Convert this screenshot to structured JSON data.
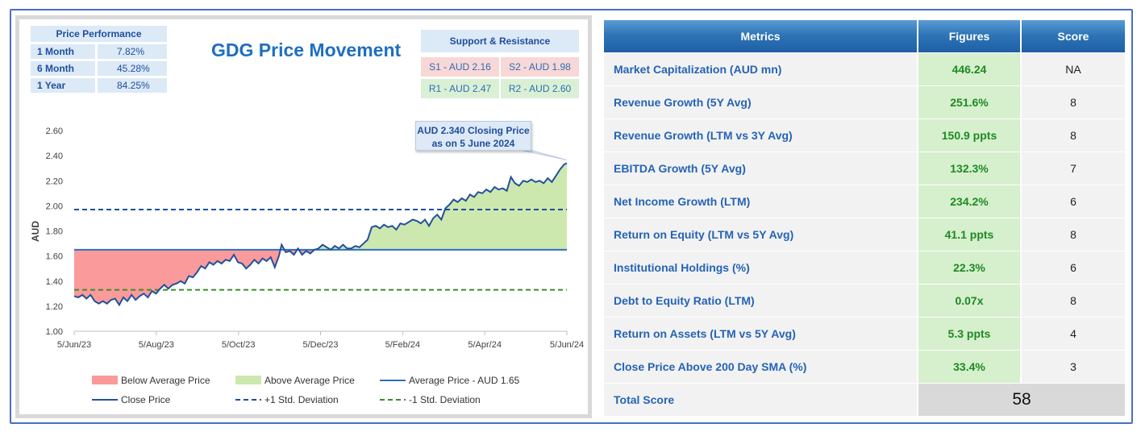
{
  "price_performance": {
    "header": "Price Performance",
    "rows": [
      {
        "label": "1 Month",
        "value": "7.82%"
      },
      {
        "label": "6 Month",
        "value": "45.28%"
      },
      {
        "label": "1 Year",
        "value": "84.25%"
      }
    ]
  },
  "chart_title": "GDG Price Movement",
  "support_resistance": {
    "header": "Support & Resistance",
    "s1": "S1 - AUD 2.16",
    "s2": "S2 - AUD 1.98",
    "r1": "R1 - AUD 2.47",
    "r2": "R2 - AUD 2.60"
  },
  "callout": {
    "line1": "AUD 2.340 Closing Price",
    "line2": "as on 5 June 2024"
  },
  "chart_data": {
    "type": "line",
    "ylabel": "AUD",
    "ylim": [
      1.0,
      2.6
    ],
    "yticks": [
      "1.00",
      "1.20",
      "1.40",
      "1.60",
      "1.80",
      "2.00",
      "2.20",
      "2.40",
      "2.60"
    ],
    "xticks": [
      "5/Jun/23",
      "5/Aug/23",
      "5/Oct/23",
      "5/Dec/23",
      "5/Feb/24",
      "5/Apr/24",
      "5/Jun/24"
    ],
    "average_price": 1.65,
    "plus_1_std": 1.97,
    "minus_1_std": 1.33,
    "close_series": [
      [
        0,
        1.28
      ],
      [
        3,
        1.27
      ],
      [
        6,
        1.29
      ],
      [
        9,
        1.26
      ],
      [
        12,
        1.29
      ],
      [
        15,
        1.24
      ],
      [
        18,
        1.22
      ],
      [
        21,
        1.24
      ],
      [
        24,
        1.22
      ],
      [
        27,
        1.25
      ],
      [
        30,
        1.26
      ],
      [
        33,
        1.21
      ],
      [
        36,
        1.27
      ],
      [
        39,
        1.24
      ],
      [
        42,
        1.29
      ],
      [
        45,
        1.25
      ],
      [
        48,
        1.28
      ],
      [
        51,
        1.3
      ],
      [
        54,
        1.27
      ],
      [
        57,
        1.32
      ],
      [
        60,
        1.3
      ],
      [
        63,
        1.34
      ],
      [
        66,
        1.37
      ],
      [
        69,
        1.34
      ],
      [
        72,
        1.37
      ],
      [
        75,
        1.38
      ],
      [
        78,
        1.4
      ],
      [
        81,
        1.38
      ],
      [
        84,
        1.44
      ],
      [
        87,
        1.43
      ],
      [
        90,
        1.47
      ],
      [
        93,
        1.52
      ],
      [
        96,
        1.5
      ],
      [
        99,
        1.55
      ],
      [
        102,
        1.53
      ],
      [
        105,
        1.56
      ],
      [
        108,
        1.54
      ],
      [
        111,
        1.57
      ],
      [
        114,
        1.56
      ],
      [
        117,
        1.61
      ],
      [
        120,
        1.55
      ],
      [
        123,
        1.54
      ],
      [
        126,
        1.5
      ],
      [
        129,
        1.53
      ],
      [
        132,
        1.57
      ],
      [
        135,
        1.54
      ],
      [
        138,
        1.58
      ],
      [
        141,
        1.56
      ],
      [
        144,
        1.59
      ],
      [
        147,
        1.51
      ],
      [
        150,
        1.6
      ],
      [
        152,
        1.69
      ],
      [
        155,
        1.63
      ],
      [
        158,
        1.64
      ],
      [
        161,
        1.61
      ],
      [
        164,
        1.66
      ],
      [
        167,
        1.61
      ],
      [
        170,
        1.64
      ],
      [
        173,
        1.62
      ],
      [
        176,
        1.65
      ],
      [
        179,
        1.66
      ],
      [
        182,
        1.69
      ],
      [
        185,
        1.67
      ],
      [
        188,
        1.65
      ],
      [
        191,
        1.68
      ],
      [
        194,
        1.66
      ],
      [
        197,
        1.69
      ],
      [
        200,
        1.66
      ],
      [
        203,
        1.66
      ],
      [
        206,
        1.68
      ],
      [
        209,
        1.67
      ],
      [
        212,
        1.7
      ],
      [
        215,
        1.73
      ],
      [
        218,
        1.83
      ],
      [
        221,
        1.84
      ],
      [
        224,
        1.82
      ],
      [
        227,
        1.85
      ],
      [
        230,
        1.83
      ],
      [
        233,
        1.84
      ],
      [
        236,
        1.81
      ],
      [
        239,
        1.86
      ],
      [
        242,
        1.85
      ],
      [
        245,
        1.87
      ],
      [
        248,
        1.89
      ],
      [
        251,
        1.88
      ],
      [
        254,
        1.86
      ],
      [
        257,
        1.89
      ],
      [
        260,
        1.84
      ],
      [
        263,
        1.9
      ],
      [
        266,
        1.93
      ],
      [
        269,
        1.89
      ],
      [
        272,
        1.98
      ],
      [
        275,
        2.01
      ],
      [
        278,
        2.05
      ],
      [
        281,
        2.03
      ],
      [
        284,
        2.06
      ],
      [
        287,
        2.04
      ],
      [
        290,
        2.09
      ],
      [
        293,
        2.07
      ],
      [
        296,
        2.11
      ],
      [
        299,
        2.1
      ],
      [
        302,
        2.13
      ],
      [
        305,
        2.11
      ],
      [
        308,
        2.15
      ],
      [
        311,
        2.13
      ],
      [
        314,
        2.14
      ],
      [
        317,
        2.12
      ],
      [
        320,
        2.23
      ],
      [
        323,
        2.18
      ],
      [
        326,
        2.16
      ],
      [
        329,
        2.2
      ],
      [
        332,
        2.19
      ],
      [
        335,
        2.21
      ],
      [
        338,
        2.19
      ],
      [
        341,
        2.2
      ],
      [
        344,
        2.18
      ],
      [
        347,
        2.22
      ],
      [
        350,
        2.19
      ],
      [
        353,
        2.24
      ],
      [
        356,
        2.29
      ],
      [
        359,
        2.33
      ],
      [
        361,
        2.34
      ]
    ],
    "series": [
      {
        "name": "Below Average Price"
      },
      {
        "name": "Above Average Price"
      },
      {
        "name": "Average Price - AUD 1.65"
      },
      {
        "name": "Close Price"
      },
      {
        "name": "+1 Std. Deviation"
      },
      {
        "name": "-1 Std. Deviation"
      }
    ],
    "legend_placement": "bottom",
    "grid": false
  },
  "colors": {
    "below": "#fa9a9a",
    "above": "#cde8ae",
    "avg_line": "#2f6fbd",
    "close_line": "#22519b",
    "plus_std": "#1f4e9c",
    "minus_std": "#3c8a2e"
  },
  "metrics": {
    "headers": [
      "Metrics",
      "Figures",
      "Score"
    ],
    "rows": [
      {
        "name": "Market Capitalization (AUD mn)",
        "figure": "446.24",
        "score": "NA"
      },
      {
        "name": "Revenue Growth (5Y Avg)",
        "figure": "251.6%",
        "score": "8"
      },
      {
        "name": "Revenue Growth (LTM vs 3Y Avg)",
        "figure": "150.9 ppts",
        "score": "8"
      },
      {
        "name": "EBITDA Growth (5Y Avg)",
        "figure": "132.3%",
        "score": "7"
      },
      {
        "name": "Net Income Growth (LTM)",
        "figure": "234.2%",
        "score": "6"
      },
      {
        "name": "Return on Equity (LTM vs 5Y Avg)",
        "figure": "41.1 ppts",
        "score": "8"
      },
      {
        "name": "Institutional Holdings (%)",
        "figure": "22.3%",
        "score": "6"
      },
      {
        "name": "Debt to Equity Ratio (LTM)",
        "figure": "0.07x",
        "score": "8"
      },
      {
        "name": "Return on Assets (LTM vs 5Y Avg)",
        "figure": "5.3 ppts",
        "score": "4"
      },
      {
        "name": "Close Price Above 200 Day SMA (%)",
        "figure": "33.4%",
        "score": "3"
      }
    ],
    "total_label": "Total Score",
    "total_value": "58"
  }
}
